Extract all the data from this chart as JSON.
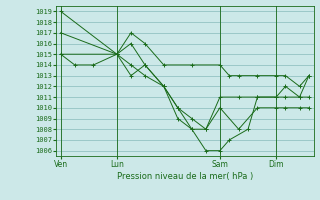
{
  "bg_color": "#cce8e8",
  "grid_color": "#88bbbb",
  "line_color": "#1a6b1a",
  "title": "Pression niveau de la mer( hPa )",
  "ylim": [
    1005.5,
    1019.5
  ],
  "yticks": [
    1006,
    1007,
    1008,
    1009,
    1010,
    1011,
    1012,
    1013,
    1014,
    1015,
    1016,
    1017,
    1018,
    1019
  ],
  "xtick_labels": [
    "Ven",
    "Lun",
    "Sam",
    "Dim"
  ],
  "xtick_positions": [
    0,
    12,
    34,
    46
  ],
  "xvlines": [
    0,
    12,
    34,
    46
  ],
  "xlim": [
    -1,
    54
  ],
  "series": [
    {
      "x": [
        0,
        12,
        15,
        18,
        22,
        28,
        34,
        36,
        38,
        42,
        46,
        48,
        51,
        53
      ],
      "y": [
        1019,
        1015,
        1017,
        1016,
        1014,
        1014,
        1014,
        1013,
        1013,
        1013,
        1013,
        1013,
        1012,
        1013
      ]
    },
    {
      "x": [
        0,
        12,
        15,
        18,
        22,
        25,
        28,
        31,
        34,
        38,
        42,
        46,
        48,
        51,
        53
      ],
      "y": [
        1017,
        1015,
        1016,
        1014,
        1012,
        1010,
        1009,
        1008,
        1011,
        1011,
        1011,
        1011,
        1011,
        1011,
        1011
      ]
    },
    {
      "x": [
        0,
        12,
        15,
        18,
        22,
        25,
        28,
        31,
        34,
        38,
        42,
        46,
        48,
        51,
        53
      ],
      "y": [
        1015,
        1015,
        1013,
        1014,
        1012,
        1010,
        1008,
        1008,
        1010,
        1008,
        1010,
        1010,
        1010,
        1010,
        1010
      ]
    },
    {
      "x": [
        0,
        3,
        7,
        12,
        15,
        18,
        22,
        25,
        28,
        31,
        34,
        36,
        40,
        42,
        46,
        48,
        51,
        53
      ],
      "y": [
        1015,
        1014,
        1014,
        1015,
        1014,
        1013,
        1012,
        1009,
        1008,
        1006,
        1006,
        1007,
        1008,
        1011,
        1011,
        1012,
        1011,
        1013
      ]
    }
  ]
}
